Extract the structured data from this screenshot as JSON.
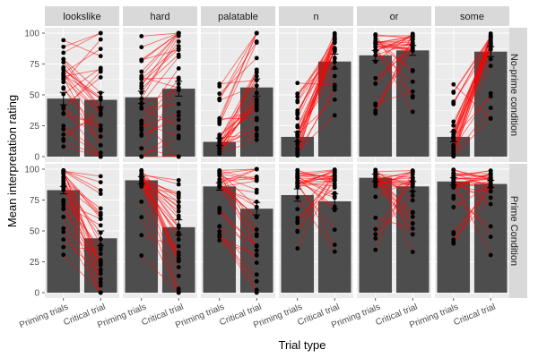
{
  "chart_data": {
    "type": "bar",
    "xlabel": "Trial type",
    "ylabel": "Mean interpretation rating",
    "categories": [
      "Priming trials",
      "Critical trial"
    ],
    "ylim": [
      0,
      100
    ],
    "yticks": [
      "0",
      "25",
      "50",
      "75",
      "100"
    ],
    "columns": [
      "lookslike",
      "hard",
      "palatable",
      "n",
      "or",
      "some"
    ],
    "rows": [
      "No-prime condition",
      "Prime Condition"
    ],
    "bar_color": "#4d4d4d",
    "line_color": "#ff0000",
    "panel_bg": "#ebebeb",
    "strip_bg": "#d9d9d9",
    "panels": [
      {
        "column": "lookslike",
        "row": "No-prime condition",
        "values": [
          47,
          46
        ],
        "errors": [
          5,
          6
        ],
        "shift": -10,
        "priming_spread": "wide",
        "critical_spread": "wide"
      },
      {
        "column": "hard",
        "row": "No-prime condition",
        "values": [
          48,
          55
        ],
        "errors": [
          5,
          6
        ],
        "shift": 10,
        "priming_spread": "wide",
        "critical_spread": "wide"
      },
      {
        "column": "palatable",
        "row": "No-prime condition",
        "values": [
          12,
          56
        ],
        "errors": [
          3,
          7
        ],
        "shift": 45,
        "priming_spread": "low",
        "critical_spread": "wide"
      },
      {
        "column": "n",
        "row": "No-prime condition",
        "values": [
          16,
          77
        ],
        "errors": [
          4,
          6
        ],
        "shift": 60,
        "priming_spread": "low",
        "critical_spread": "high"
      },
      {
        "column": "or",
        "row": "No-prime condition",
        "values": [
          82,
          86
        ],
        "errors": [
          4,
          4
        ],
        "shift": 5,
        "priming_spread": "high",
        "critical_spread": "high"
      },
      {
        "column": "some",
        "row": "No-prime condition",
        "values": [
          16,
          85
        ],
        "errors": [
          4,
          4
        ],
        "shift": 68,
        "priming_spread": "low",
        "critical_spread": "high"
      },
      {
        "column": "lookslike",
        "row": "Prime Condition",
        "values": [
          83,
          44
        ],
        "errors": [
          3,
          6
        ],
        "shift": -40,
        "priming_spread": "high",
        "critical_spread": "wide"
      },
      {
        "column": "hard",
        "row": "Prime Condition",
        "values": [
          91,
          53
        ],
        "errors": [
          3,
          6
        ],
        "shift": -40,
        "priming_spread": "high",
        "critical_spread": "wide"
      },
      {
        "column": "palatable",
        "row": "Prime Condition",
        "values": [
          86,
          68
        ],
        "errors": [
          3,
          5
        ],
        "shift": -20,
        "priming_spread": "high",
        "critical_spread": "wide"
      },
      {
        "column": "n",
        "row": "Prime Condition",
        "values": [
          79,
          74
        ],
        "errors": [
          5,
          6
        ],
        "shift": -5,
        "priming_spread": "high",
        "critical_spread": "high"
      },
      {
        "column": "or",
        "row": "Prime Condition",
        "values": [
          93,
          86
        ],
        "errors": [
          3,
          4
        ],
        "shift": -6,
        "priming_spread": "high",
        "critical_spread": "high"
      },
      {
        "column": "some",
        "row": "Prime Condition",
        "values": [
          90,
          88
        ],
        "errors": [
          3,
          3
        ],
        "shift": -2,
        "priming_spread": "high",
        "critical_spread": "high"
      }
    ]
  }
}
